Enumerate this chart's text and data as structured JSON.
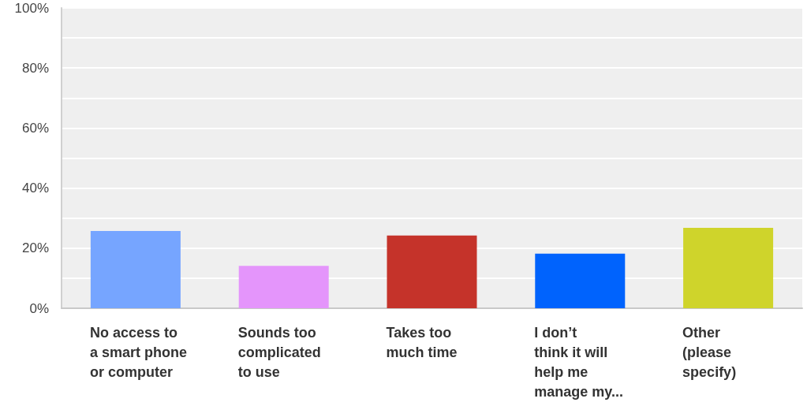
{
  "chart_data": {
    "type": "bar",
    "categories": [
      "No access to\na smart phone\nor computer",
      "Sounds too\ncomplicated\nto use",
      "Takes too\nmuch time",
      "I don’t\nthink it will\nhelp me\nmanage my...",
      "Other\n(please\nspecify)"
    ],
    "values": [
      25.7,
      14.1,
      24.2,
      18.2,
      26.8
    ],
    "colors": [
      "#76a5ff",
      "#e495fb",
      "#c5332a",
      "#0063fd",
      "#cfd42b"
    ],
    "ylim": [
      0,
      100
    ],
    "yticks": [
      {
        "value": 0,
        "label": "0%"
      },
      {
        "value": 10,
        "label": null
      },
      {
        "value": 20,
        "label": "20%"
      },
      {
        "value": 30,
        "label": null
      },
      {
        "value": 40,
        "label": "40%"
      },
      {
        "value": 50,
        "label": null
      },
      {
        "value": 60,
        "label": "60%"
      },
      {
        "value": 70,
        "label": null
      },
      {
        "value": 80,
        "label": "80%"
      },
      {
        "value": 90,
        "label": null
      },
      {
        "value": 100,
        "label": "100%"
      }
    ],
    "grid": "y"
  }
}
